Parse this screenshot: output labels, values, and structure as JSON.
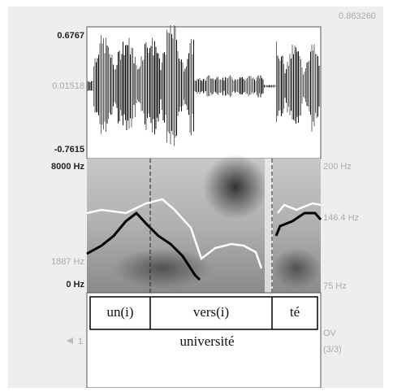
{
  "header": {
    "time_top": "0.863260"
  },
  "waveform": {
    "max": "0.6767",
    "mid": "0.01518",
    "min": "-0.7615"
  },
  "spectrogram": {
    "top": "8000 Hz",
    "mark": "1887 Hz",
    "bottom": "0 Hz"
  },
  "pitch": {
    "top": "200 Hz",
    "mark": "146.4 Hz",
    "bottom": "75 Hz"
  },
  "tier": {
    "number": "1",
    "intervals": [
      "un(i)",
      "vers(i)",
      "té"
    ],
    "word": "université",
    "name": "OV",
    "count": "(3/3)"
  }
}
